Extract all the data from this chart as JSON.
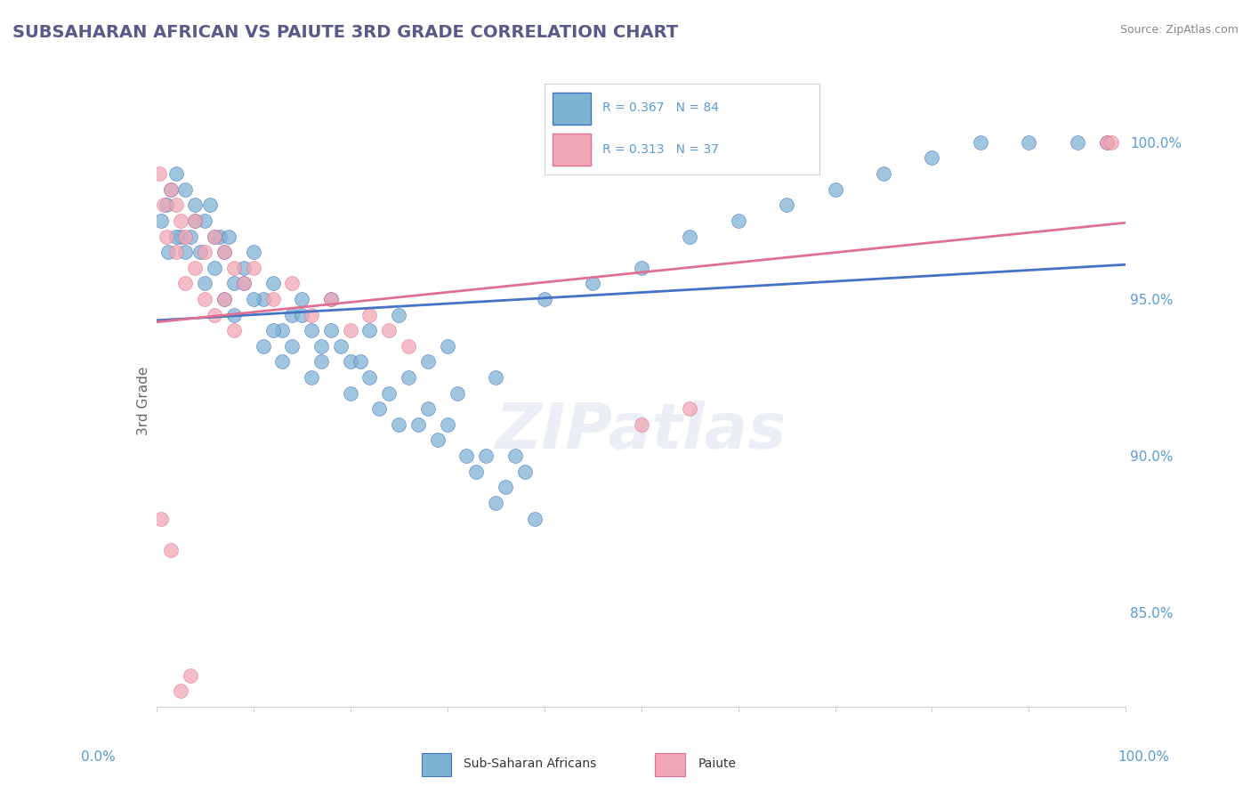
{
  "title": "SUBSAHARAN AFRICAN VS PAIUTE 3RD GRADE CORRELATION CHART",
  "source_text": "Source: ZipAtlas.com",
  "ylabel": "3rd Grade",
  "xlim": [
    0,
    100
  ],
  "ylim": [
    82,
    101.5
  ],
  "yticks_right": [
    85.0,
    90.0,
    95.0,
    100.0
  ],
  "ytick_labels_right": [
    "85.0%",
    "90.0%",
    "95.0%",
    "100.0%"
  ],
  "legend_blue_label": "Sub-Saharan Africans",
  "legend_pink_label": "Paiute",
  "r_blue": 0.367,
  "n_blue": 84,
  "r_pink": 0.313,
  "n_pink": 37,
  "blue_color": "#7fb3d3",
  "pink_color": "#f1a7b5",
  "blue_line_color": "#4472c4",
  "pink_line_color": "#e07090",
  "title_color": "#5a5a8a",
  "axis_label_color": "#5a9ad5",
  "grid_color": "#d0d0d0",
  "watermark_text": "ZIPatlas",
  "blue_scatter_x": [
    0.5,
    1.0,
    1.2,
    1.5,
    2.0,
    2.5,
    3.0,
    3.5,
    4.0,
    4.5,
    5.0,
    5.5,
    6.0,
    6.5,
    7.0,
    7.5,
    8.0,
    9.0,
    10.0,
    11.0,
    12.0,
    13.0,
    14.0,
    15.0,
    16.0,
    17.0,
    18.0,
    20.0,
    22.0,
    25.0,
    28.0,
    30.0,
    35.0,
    40.0,
    45.0,
    50.0,
    55.0,
    60.0,
    65.0,
    70.0,
    75.0,
    80.0,
    85.0,
    90.0,
    95.0,
    98.0,
    2.0,
    3.0,
    4.0,
    5.0,
    6.0,
    7.0,
    8.0,
    9.0,
    10.0,
    11.0,
    12.0,
    13.0,
    14.0,
    15.0,
    16.0,
    17.0,
    18.0,
    19.0,
    20.0,
    21.0,
    22.0,
    23.0,
    24.0,
    25.0,
    26.0,
    27.0,
    28.0,
    29.0,
    30.0,
    31.0,
    32.0,
    33.0,
    34.0,
    35.0,
    36.0,
    37.0,
    38.0,
    39.0
  ],
  "blue_scatter_y": [
    97.5,
    98.0,
    96.5,
    98.5,
    99.0,
    97.0,
    98.5,
    97.0,
    98.0,
    96.5,
    97.5,
    98.0,
    96.0,
    97.0,
    96.5,
    97.0,
    95.5,
    96.0,
    96.5,
    95.0,
    95.5,
    94.0,
    94.5,
    95.0,
    94.0,
    93.5,
    95.0,
    93.0,
    94.0,
    94.5,
    93.0,
    93.5,
    92.5,
    95.0,
    95.5,
    96.0,
    97.0,
    97.5,
    98.0,
    98.5,
    99.0,
    99.5,
    100.0,
    100.0,
    100.0,
    100.0,
    97.0,
    96.5,
    97.5,
    95.5,
    97.0,
    95.0,
    94.5,
    95.5,
    95.0,
    93.5,
    94.0,
    93.0,
    93.5,
    94.5,
    92.5,
    93.0,
    94.0,
    93.5,
    92.0,
    93.0,
    92.5,
    91.5,
    92.0,
    91.0,
    92.5,
    91.0,
    91.5,
    90.5,
    91.0,
    92.0,
    90.0,
    89.5,
    90.0,
    88.5,
    89.0,
    90.0,
    89.5,
    88.0
  ],
  "pink_scatter_x": [
    0.3,
    0.8,
    1.5,
    2.0,
    2.5,
    3.0,
    4.0,
    5.0,
    6.0,
    7.0,
    8.0,
    9.0,
    10.0,
    12.0,
    14.0,
    16.0,
    18.0,
    20.0,
    22.0,
    24.0,
    26.0,
    1.0,
    2.0,
    3.0,
    4.0,
    5.0,
    6.0,
    7.0,
    8.0,
    50.0,
    55.0,
    98.0,
    98.5,
    0.5,
    1.5,
    2.5,
    3.5
  ],
  "pink_scatter_y": [
    99.0,
    98.0,
    98.5,
    98.0,
    97.5,
    97.0,
    97.5,
    96.5,
    97.0,
    96.5,
    96.0,
    95.5,
    96.0,
    95.0,
    95.5,
    94.5,
    95.0,
    94.0,
    94.5,
    94.0,
    93.5,
    97.0,
    96.5,
    95.5,
    96.0,
    95.0,
    94.5,
    95.0,
    94.0,
    91.0,
    91.5,
    100.0,
    100.0,
    88.0,
    87.0,
    82.5,
    83.0
  ]
}
